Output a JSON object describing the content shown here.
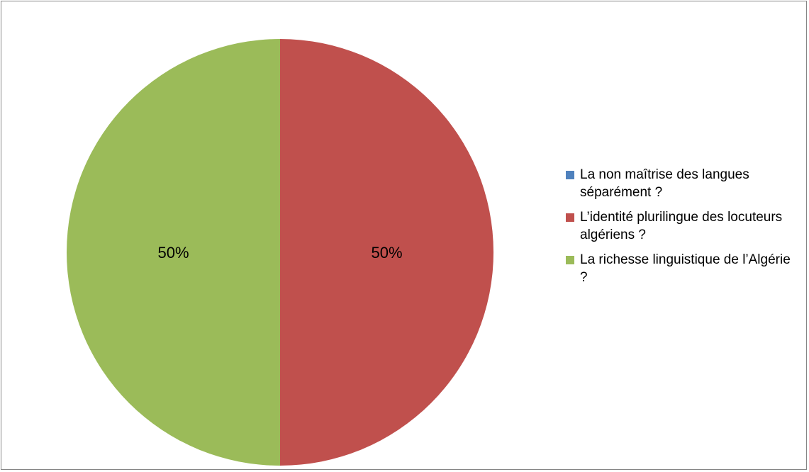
{
  "chart_data": {
    "type": "pie",
    "categories": [
      "La non maîtrise des langues séparément ?",
      "L’identité plurilingue des locuteurs algériens ?",
      "La richesse linguistique de l’Algérie ?"
    ],
    "values": [
      0,
      50,
      50
    ],
    "data_labels": [
      "",
      "50%",
      "50%"
    ],
    "colors": [
      "#4F81BD",
      "#C0504D",
      "#9BBB59"
    ],
    "legend_position": "right",
    "start_angle": "12 o'clock, clockwise"
  }
}
